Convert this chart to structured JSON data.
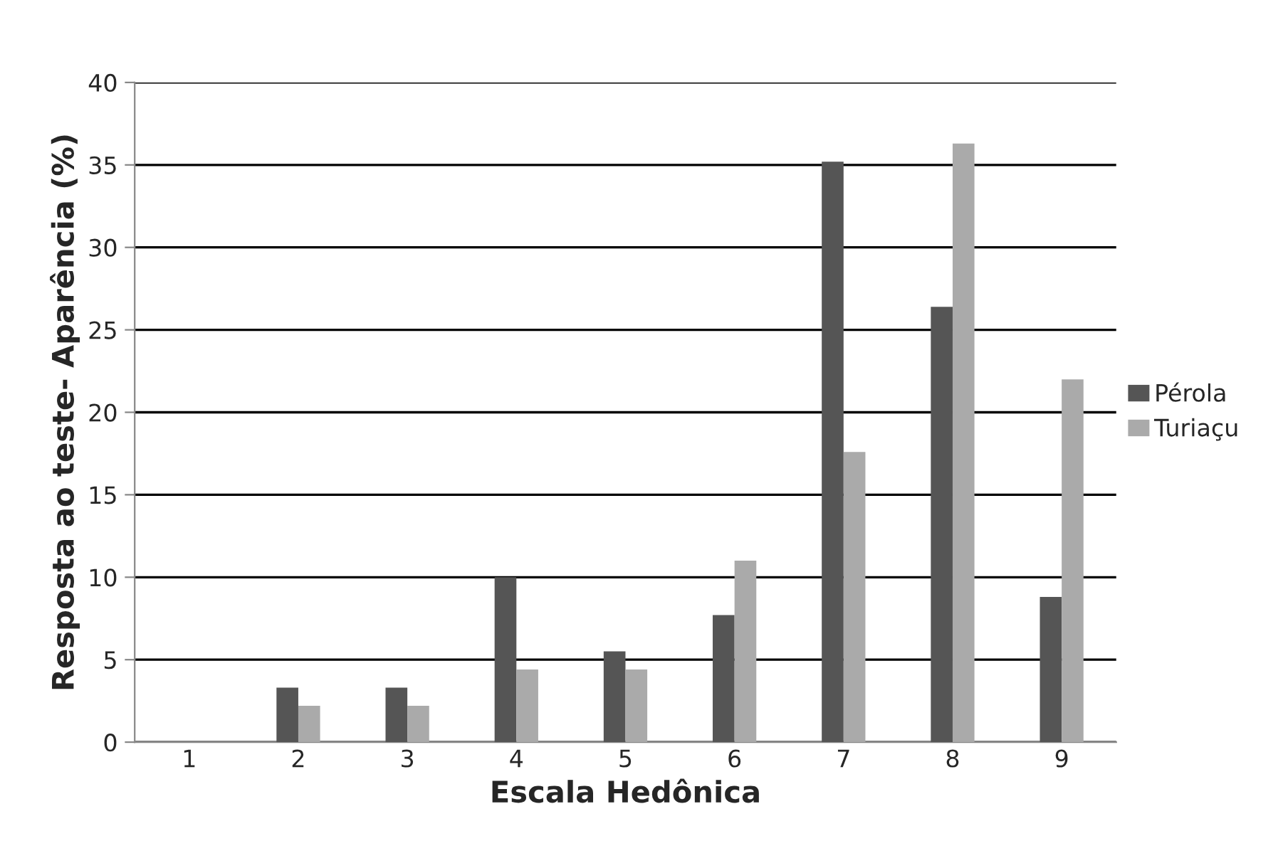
{
  "chart_data": {
    "type": "bar",
    "xlabel": "Escala Hedônica",
    "ylabel": "Resposta ao teste- Aparência (%)",
    "categories": [
      "1",
      "2",
      "3",
      "4",
      "5",
      "6",
      "7",
      "8",
      "9"
    ],
    "series": [
      {
        "name": "Pérola",
        "color": "#555555",
        "values": [
          0,
          3.3,
          3.3,
          10,
          5.5,
          7.7,
          35.2,
          26.4,
          8.8
        ]
      },
      {
        "name": "Turiaçu",
        "color": "#aaaaaa",
        "values": [
          0,
          2.2,
          2.2,
          4.4,
          4.4,
          11,
          17.6,
          36.3,
          22
        ]
      }
    ],
    "ylim": [
      0,
      40
    ],
    "yticks": [
      0,
      5,
      10,
      15,
      20,
      25,
      30,
      35,
      40
    ],
    "grid": "y",
    "legend": "right"
  }
}
